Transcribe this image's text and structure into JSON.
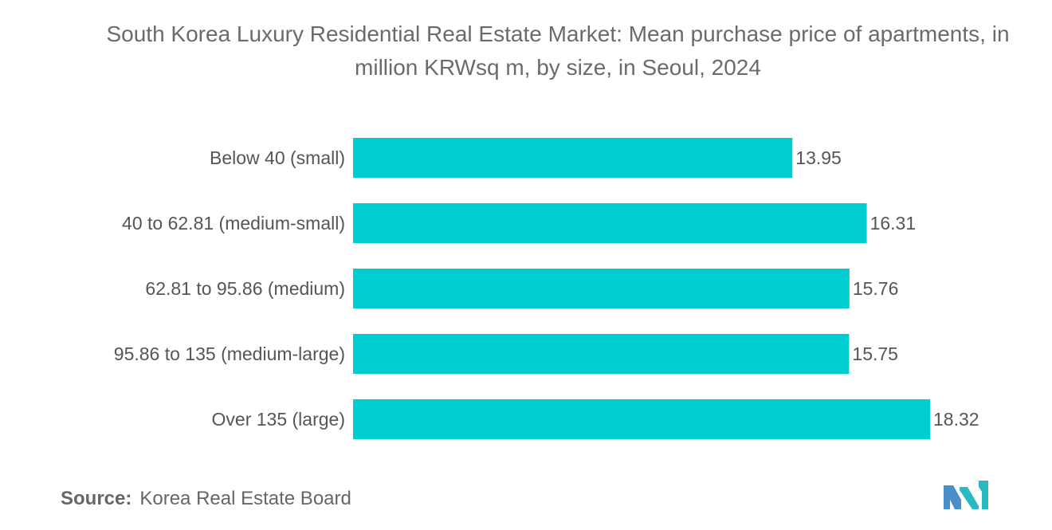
{
  "chart_data": {
    "type": "bar",
    "orientation": "horizontal",
    "title": "South Korea Luxury Residential Real Estate Market: Mean purchase price of apartments, in million KRWsq m, by size, in Seoul, 2024",
    "categories": [
      "Below 40 (small)",
      "40 to 62.81 (medium-small)",
      "62.81 to 95.86 (medium)",
      "95.86 to 135 (medium-large)",
      "Over 135 (large)"
    ],
    "values": [
      13.95,
      16.31,
      15.76,
      15.75,
      18.32
    ],
    "value_labels": [
      "13.95",
      "16.31",
      "15.76",
      "15.75",
      "18.32"
    ],
    "xlabel": "",
    "ylabel": "",
    "xlim": [
      0,
      18.32
    ],
    "grid": false,
    "legend": "none",
    "bar_color": "#00cdd0"
  },
  "source": {
    "label": "Source:",
    "text": "Korea Real Estate Board"
  },
  "logo": {
    "icon": "mordor-logo-icon",
    "colors": [
      "#4a8fc9",
      "#2bb9c0"
    ]
  }
}
